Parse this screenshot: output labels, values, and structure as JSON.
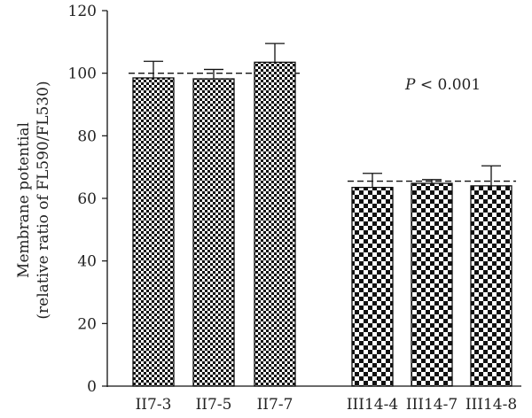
{
  "chart_data": {
    "type": "bar",
    "categories": [
      "II7-3",
      "II7-5",
      "II7-7",
      "III14-4",
      "III14-7",
      "III14-8"
    ],
    "values": [
      98.5,
      98.2,
      103.5,
      63.5,
      64.8,
      64.0
    ],
    "errors": [
      5.3,
      3.0,
      6.0,
      4.5,
      1.2,
      6.4
    ],
    "groups": [
      {
        "indices": [
          0,
          1,
          2
        ],
        "reference_line": 100
      },
      {
        "indices": [
          3,
          4,
          5
        ],
        "reference_line": 65.5
      }
    ],
    "ylabel_line1": "Membrane potential",
    "ylabel_line2": "(relative ratio of FL590/FL530)",
    "ylim": [
      0,
      120
    ],
    "yticks": [
      0,
      20,
      40,
      60,
      80,
      100,
      120
    ],
    "annotation_p": "P",
    "annotation_rest": " < 0.001",
    "grid": false,
    "pattern_group1": "fine-checker",
    "pattern_group2": "coarse-checker",
    "bar_color": "#111111"
  }
}
